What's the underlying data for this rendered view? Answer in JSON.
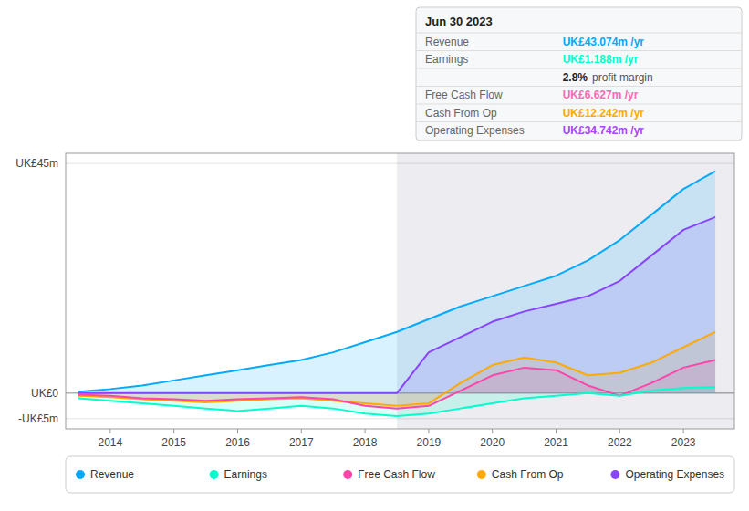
{
  "chart_data": {
    "type": "area",
    "title": "Jun 30 2023",
    "xlim": [
      2013.3,
      2023.8
    ],
    "ylim": [
      -7,
      47
    ],
    "xticks": [
      2014,
      2015,
      2016,
      2017,
      2018,
      2019,
      2020,
      2021,
      2022,
      2023
    ],
    "yticks": [
      {
        "value": -5,
        "label": "-UK£5m"
      },
      {
        "value": 0,
        "label": "UK£0"
      },
      {
        "value": 45,
        "label": "UK£45m"
      }
    ],
    "grid": true,
    "legend": "bottom",
    "shade_start": 2018.5,
    "series": [
      {
        "name": "Revenue",
        "color": "#00aaff",
        "x": [
          2013.5,
          2014.0,
          2014.5,
          2015.0,
          2015.5,
          2016.0,
          2016.5,
          2017.0,
          2017.5,
          2018.0,
          2018.5,
          2019.0,
          2019.5,
          2020.0,
          2020.5,
          2021.0,
          2021.5,
          2022.0,
          2022.5,
          2023.0,
          2023.5
        ],
        "values": [
          0.3,
          0.8,
          1.5,
          2.5,
          3.5,
          4.5,
          5.5,
          6.5,
          8.0,
          10.0,
          12.0,
          14.5,
          17.0,
          19.0,
          21.0,
          23.0,
          26.0,
          30.0,
          35.0,
          40.0,
          43.5
        ]
      },
      {
        "name": "Earnings",
        "color": "#00ffcc",
        "x": [
          2013.5,
          2014.0,
          2014.5,
          2015.0,
          2015.5,
          2016.0,
          2016.5,
          2017.0,
          2017.5,
          2018.0,
          2018.5,
          2019.0,
          2019.5,
          2020.0,
          2020.5,
          2021.0,
          2021.5,
          2022.0,
          2022.5,
          2023.0,
          2023.5
        ],
        "values": [
          -1.0,
          -1.5,
          -2.0,
          -2.5,
          -3.0,
          -3.5,
          -3.0,
          -2.5,
          -3.0,
          -4.0,
          -4.5,
          -4.0,
          -3.0,
          -2.0,
          -1.0,
          -0.5,
          0.0,
          -0.5,
          0.5,
          1.0,
          1.2
        ]
      },
      {
        "name": "Free Cash Flow",
        "color": "#ff44aa",
        "x": [
          2013.5,
          2014.0,
          2014.5,
          2015.0,
          2015.5,
          2016.0,
          2016.5,
          2017.0,
          2017.5,
          2018.0,
          2018.5,
          2019.0,
          2019.5,
          2020.0,
          2020.5,
          2021.0,
          2021.5,
          2022.0,
          2022.5,
          2023.0,
          2023.5
        ],
        "values": [
          -0.3,
          -0.5,
          -1.0,
          -1.2,
          -1.5,
          -1.2,
          -1.0,
          -0.8,
          -1.2,
          -2.5,
          -3.0,
          -2.5,
          0.5,
          3.5,
          5.0,
          4.5,
          1.5,
          -0.5,
          2.0,
          5.0,
          6.5
        ]
      },
      {
        "name": "Cash From Op",
        "color": "#ffaa00",
        "x": [
          2013.5,
          2014.0,
          2014.5,
          2015.0,
          2015.5,
          2016.0,
          2016.5,
          2017.0,
          2017.5,
          2018.0,
          2018.5,
          2019.0,
          2019.5,
          2020.0,
          2020.5,
          2021.0,
          2021.5,
          2022.0,
          2022.5,
          2023.0,
          2023.5
        ],
        "values": [
          -0.5,
          -0.8,
          -1.2,
          -1.5,
          -1.8,
          -1.5,
          -1.2,
          -1.0,
          -1.5,
          -2.0,
          -2.5,
          -2.0,
          2.0,
          5.5,
          7.0,
          6.0,
          3.5,
          4.0,
          6.0,
          9.0,
          12.0
        ]
      },
      {
        "name": "Operating Expenses",
        "color": "#8844ff",
        "x": [
          2013.5,
          2018.5,
          2019.0,
          2019.5,
          2020.0,
          2020.5,
          2021.0,
          2021.5,
          2022.0,
          2022.5,
          2023.0,
          2023.5
        ],
        "values": [
          0,
          0,
          8.0,
          11.0,
          14.0,
          16.0,
          17.5,
          19.0,
          22.0,
          27.0,
          32.0,
          34.5
        ]
      }
    ],
    "annotations": [
      {
        "label": "Revenue",
        "text": "UK£43.074m /yr",
        "color": "#00aaff"
      },
      {
        "label": "Earnings",
        "text": "UK£1.188m /yr",
        "color": "#00ffcc"
      },
      {
        "text": "2.8%",
        "suffix": "profit margin"
      },
      {
        "label": "Free Cash Flow",
        "text": "UK£6.627m /yr",
        "color": "#ff69b4"
      },
      {
        "label": "Cash From Op",
        "text": "UK£12.242m /yr",
        "color": "#ffaa00"
      },
      {
        "label": "Operating Expenses",
        "text": "UK£34.742m /yr",
        "color": "#aa44ff"
      }
    ]
  }
}
